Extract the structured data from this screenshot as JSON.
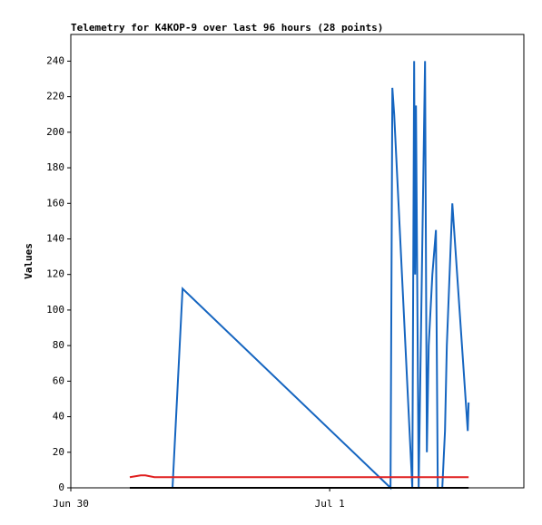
{
  "chart_data": {
    "type": "line",
    "title": "Telemetry for K4KOP-9 over last 96 hours (28 points)",
    "y_label": "Values",
    "xlim": [
      0,
      42
    ],
    "xticks": [
      {
        "value": 0,
        "label": "Jun 30"
      },
      {
        "value": 24,
        "label": "Jul 1"
      }
    ],
    "ylim": [
      0,
      255
    ],
    "yticks": [
      0,
      20,
      40,
      60,
      80,
      100,
      120,
      140,
      160,
      180,
      200,
      220,
      240
    ],
    "series": [
      {
        "color": "#1565c0",
        "x": [
          9.43,
          10.36,
          29.64,
          29.81,
          29.98,
          31.66,
          31.83,
          31.92,
          32.0,
          32.25,
          32.84,
          33.01,
          33.18,
          33.52,
          33.85,
          34.02,
          34.44,
          34.69,
          34.86,
          35.37,
          36.8,
          36.88
        ],
        "values": [
          0,
          112,
          0,
          225,
          210,
          0,
          240,
          120,
          215,
          0,
          240,
          20,
          80,
          120,
          145,
          0,
          0,
          32,
          80,
          160,
          32,
          48
        ]
      },
      {
        "color": "#e02020",
        "x": [
          5.47,
          6.48,
          6.91,
          7.75,
          36.88
        ],
        "values": [
          6,
          7,
          7,
          6,
          6
        ]
      },
      {
        "color": "#000000",
        "x": [
          5.47,
          36.88
        ],
        "values": [
          0,
          0
        ]
      }
    ]
  }
}
